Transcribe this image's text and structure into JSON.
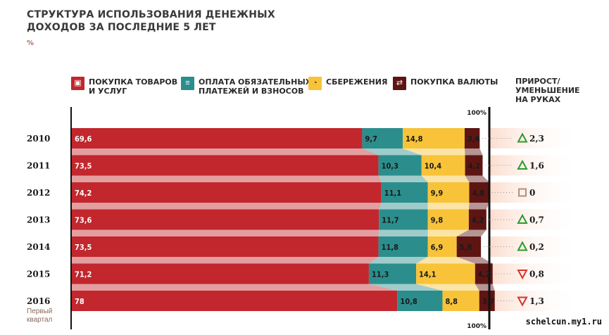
{
  "title": "СТРУКТУРА ИСПОЛЬЗОВАНИЯ ДЕНЕЖНЫХ ДОХОДОВ ЗА ПОСЛЕДНИЕ 5 ЛЕТ",
  "unit": "%",
  "legend": [
    {
      "label": "ПОКУПКА ТОВАРОВ\nИ УСЛУГ",
      "color": "#c1272d",
      "icon": "shopping-bag-icon",
      "glyph": "▣"
    },
    {
      "label": "ОПЛАТА ОБЯЗАТЕЛЬНЫХ\nПЛАТЕЖЕЙ И ВЗНОСОВ",
      "color": "#2b8e8c",
      "icon": "receipt-icon",
      "glyph": "≡"
    },
    {
      "label": "СБЕРЕЖЕНИЯ",
      "color": "#f8c339",
      "icon": "piggy-bank-icon",
      "glyph": "◔"
    },
    {
      "label": "ПОКУПКА ВАЛЮТЫ",
      "color": "#5e1512",
      "icon": "currency-exchange-icon",
      "glyph": "⇄"
    }
  ],
  "change_header": "ПРИРОСТ/\nУМЕНЬШЕНИЕ\nНА РУКАХ",
  "first_quarter_label": "Первый\nквартал",
  "watermark": "schelcun.my1.ru",
  "colors": {
    "up": "#2e9a2e",
    "down": "#d8342a",
    "zero": "#a89478",
    "hundred_line": "#111111",
    "text": "#2a2a2a"
  },
  "chart_data": {
    "type": "bar",
    "orientation": "horizontal",
    "stacked": true,
    "categories": [
      "2010",
      "2011",
      "2012",
      "2013",
      "2014",
      "2015",
      "2016"
    ],
    "series": [
      {
        "name": "ПОКУПКА ТОВАРОВ И УСЛУГ",
        "values": [
          69.6,
          73.5,
          74.2,
          73.6,
          73.5,
          71.2,
          78
        ]
      },
      {
        "name": "ОПЛАТА ОБЯЗАТЕЛЬНЫХ ПЛАТЕЖЕЙ И ВЗНОСОВ",
        "values": [
          9.7,
          10.3,
          11.1,
          11.7,
          11.8,
          11.3,
          10.8
        ]
      },
      {
        "name": "СБЕРЕЖЕНИЯ",
        "values": [
          14.8,
          10.4,
          9.9,
          9.8,
          6.9,
          14.1,
          8.8
        ]
      },
      {
        "name": "ПОКУПКА ВАЛЮТЫ",
        "values": [
          3.6,
          4.2,
          4.8,
          4.2,
          5.8,
          4.2,
          3.7
        ]
      }
    ],
    "change": {
      "name": "ПРИРОСТ/УМЕНЬШЕНИЕ НА РУКАХ",
      "values": [
        2.3,
        1.6,
        0,
        0.7,
        0.2,
        -0.8,
        -1.3
      ],
      "labels": [
        "2,3",
        "1,6",
        "0",
        "0,7",
        "0,2",
        "0,8",
        "1,3"
      ]
    },
    "value_labels": [
      [
        "69,6",
        "9,7",
        "14,8",
        "3,6"
      ],
      [
        "73,5",
        "10,3",
        "10,4",
        "4,2"
      ],
      [
        "74,2",
        "11,1",
        "9,9",
        "4,8"
      ],
      [
        "73,6",
        "11,7",
        "9,8",
        "4,2"
      ],
      [
        "73,5",
        "11,8",
        "6,9",
        "5,8"
      ],
      [
        "71,2",
        "11,3",
        "14,1",
        "4,2"
      ],
      [
        "78",
        "10,8",
        "8,8",
        "3,7"
      ]
    ],
    "hundred_label": "100%",
    "xlim": [
      0,
      100
    ]
  }
}
